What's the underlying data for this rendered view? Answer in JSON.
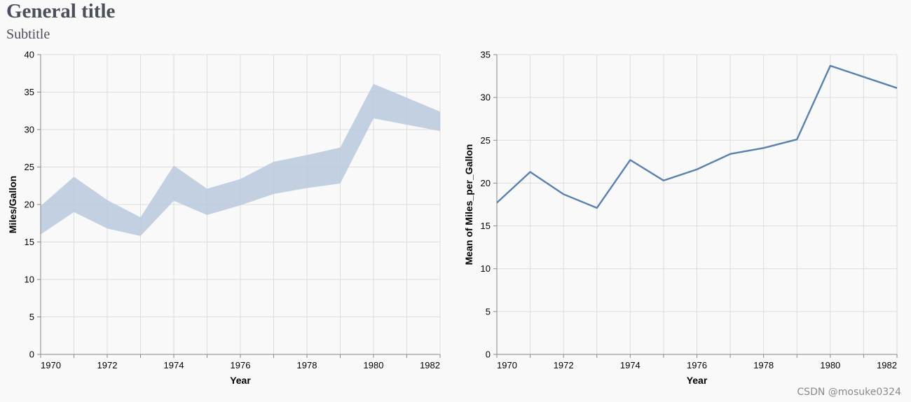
{
  "header": {
    "title": "General title",
    "subtitle": "Subtitle"
  },
  "watermark": "CSDN @mosuke0324",
  "colors": {
    "band": "#b9c9dd",
    "line": "#5a80ad",
    "grid": "#dddddd",
    "axis": "#888888"
  },
  "chart_data": [
    {
      "type": "area",
      "mark": "errorband",
      "x": [
        1970,
        1971,
        1972,
        1973,
        1974,
        1975,
        1976,
        1977,
        1978,
        1979,
        1980,
        1982
      ],
      "lower": [
        16.0,
        19.0,
        16.8,
        15.8,
        20.5,
        18.6,
        19.9,
        21.4,
        22.2,
        22.8,
        31.5,
        29.8
      ],
      "upper": [
        19.8,
        23.7,
        20.6,
        18.3,
        25.2,
        22.1,
        23.4,
        25.7,
        26.6,
        27.6,
        36.1,
        32.4
      ],
      "xlabel": "Year",
      "ylabel": "Miles/Gallon",
      "xlim": [
        1970,
        1982
      ],
      "ylim": [
        0,
        40
      ],
      "xticks": [
        1970,
        1972,
        1974,
        1976,
        1978,
        1980,
        1982
      ],
      "yticks": [
        0,
        5,
        10,
        15,
        20,
        25,
        30,
        35,
        40
      ],
      "grid": true
    },
    {
      "type": "line",
      "x": [
        1970,
        1971,
        1972,
        1973,
        1974,
        1975,
        1976,
        1977,
        1978,
        1979,
        1980,
        1982
      ],
      "values": [
        17.7,
        21.3,
        18.7,
        17.1,
        22.7,
        20.3,
        21.6,
        23.4,
        24.1,
        25.1,
        33.7,
        31.1
      ],
      "xlabel": "Year",
      "ylabel": "Mean of Miles_per_Gallon",
      "xlim": [
        1970,
        1982
      ],
      "ylim": [
        0,
        35
      ],
      "xticks": [
        1970,
        1972,
        1974,
        1976,
        1978,
        1980,
        1982
      ],
      "yticks": [
        0,
        5,
        10,
        15,
        20,
        25,
        30,
        35
      ],
      "grid": true
    }
  ]
}
